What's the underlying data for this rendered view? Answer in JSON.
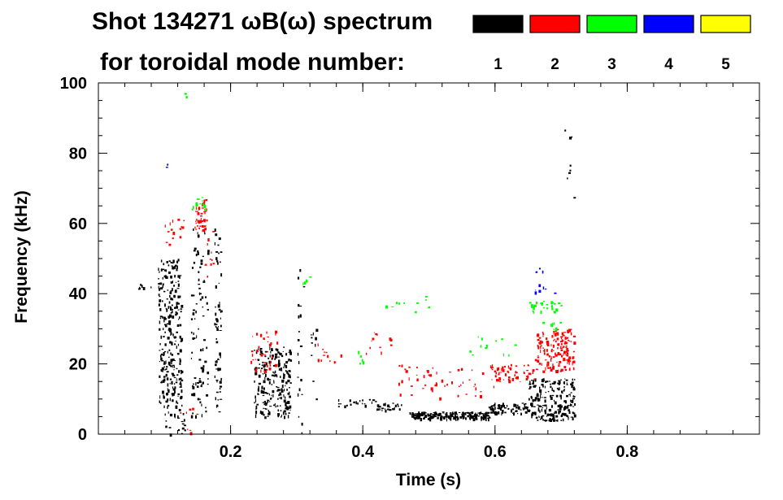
{
  "chart_data": {
    "type": "scatter",
    "title_line1": "Shot 134271 ωB(ω) spectrum",
    "title_line2": "for toroidal mode number:",
    "xlabel": "Time (s)",
    "ylabel": "Frequency (kHz)",
    "xlim": [
      0.0,
      1.0
    ],
    "ylim": [
      0,
      100
    ],
    "xticks": [
      0.2,
      0.4,
      0.6,
      0.8
    ],
    "xtick_labels": [
      "0.2",
      "0.4",
      "0.6",
      "0.8"
    ],
    "yticks": [
      0,
      20,
      40,
      60,
      80,
      100
    ],
    "ytick_labels": [
      "0",
      "20",
      "40",
      "60",
      "80",
      "100"
    ],
    "legend": [
      {
        "label": "1",
        "color": "#000000"
      },
      {
        "label": "2",
        "color": "#ff0000"
      },
      {
        "label": "3",
        "color": "#00ff00"
      },
      {
        "label": "4",
        "color": "#0000ff"
      },
      {
        "label": "5",
        "color": "#ffff00"
      }
    ],
    "series": [
      {
        "name": "n=1",
        "color": "#000000",
        "clusters": [
          {
            "x": [
              0.09,
              0.125
            ],
            "y": [
              8,
              50
            ],
            "count": 260
          },
          {
            "x": [
              0.1,
              0.13
            ],
            "y": [
              0,
              10
            ],
            "count": 25
          },
          {
            "x": [
              0.14,
              0.165
            ],
            "y": [
              5,
              60
            ],
            "count": 90
          },
          {
            "x": [
              0.175,
              0.185
            ],
            "y": [
              5,
              60
            ],
            "count": 60
          },
          {
            "x": [
              0.235,
              0.29
            ],
            "y": [
              5,
              25
            ],
            "count": 230
          },
          {
            "x": [
              0.3,
              0.31
            ],
            "y": [
              0,
              50
            ],
            "count": 20
          },
          {
            "x": [
              0.32,
              0.33
            ],
            "y": [
              10,
              30
            ],
            "count": 10
          },
          {
            "x": [
              0.36,
              0.42
            ],
            "y": [
              8,
              10
            ],
            "count": 20
          },
          {
            "x": [
              0.42,
              0.46
            ],
            "y": [
              7,
              9
            ],
            "count": 25
          },
          {
            "x": [
              0.47,
              0.59
            ],
            "y": [
              4.5,
              6.5
            ],
            "count": 200
          },
          {
            "x": [
              0.59,
              0.65
            ],
            "y": [
              6,
              9
            ],
            "count": 70
          },
          {
            "x": [
              0.65,
              0.72
            ],
            "y": [
              4,
              16
            ],
            "count": 200
          },
          {
            "x": [
              0.06,
              0.08
            ],
            "y": [
              41.5,
              43
            ],
            "count": 8
          },
          {
            "x": [
              0.7,
              0.72
            ],
            "y": [
              60,
              90
            ],
            "count": 8
          }
        ]
      },
      {
        "name": "n=2",
        "color": "#ff0000",
        "clusters": [
          {
            "x": [
              0.1,
              0.13
            ],
            "y": [
              54,
              62
            ],
            "count": 15
          },
          {
            "x": [
              0.145,
              0.165
            ],
            "y": [
              58,
              67
            ],
            "count": 45
          },
          {
            "x": [
              0.16,
              0.175
            ],
            "y": [
              45,
              60
            ],
            "count": 12
          },
          {
            "x": [
              0.23,
              0.27
            ],
            "y": [
              18,
              30
            ],
            "count": 35
          },
          {
            "x": [
              0.33,
              0.37
            ],
            "y": [
              20,
              26
            ],
            "count": 12
          },
          {
            "x": [
              0.4,
              0.45
            ],
            "y": [
              23,
              30
            ],
            "count": 12
          },
          {
            "x": [
              0.45,
              0.6
            ],
            "y": [
              10,
              20
            ],
            "count": 55
          },
          {
            "x": [
              0.59,
              0.66
            ],
            "y": [
              15,
              20
            ],
            "count": 55
          },
          {
            "x": [
              0.66,
              0.72
            ],
            "y": [
              18,
              30
            ],
            "count": 150
          },
          {
            "x": [
              0.12,
              0.15
            ],
            "y": [
              0,
              10
            ],
            "count": 8
          }
        ]
      },
      {
        "name": "n=3",
        "color": "#00ff00",
        "clusters": [
          {
            "x": [
              0.14,
              0.16
            ],
            "y": [
              64,
              68
            ],
            "count": 15
          },
          {
            "x": [
              0.3,
              0.32
            ],
            "y": [
              42,
              46
            ],
            "count": 5
          },
          {
            "x": [
              0.39,
              0.4
            ],
            "y": [
              20,
              24
            ],
            "count": 6
          },
          {
            "x": [
              0.42,
              0.5
            ],
            "y": [
              35,
              40
            ],
            "count": 10
          },
          {
            "x": [
              0.56,
              0.64
            ],
            "y": [
              22,
              28
            ],
            "count": 12
          },
          {
            "x": [
              0.65,
              0.7
            ],
            "y": [
              35,
              38
            ],
            "count": 30
          },
          {
            "x": [
              0.67,
              0.7
            ],
            "y": [
              30,
              32
            ],
            "count": 8
          },
          {
            "x": [
              0.13,
              0.14
            ],
            "y": [
              96,
              98
            ],
            "count": 2
          }
        ]
      },
      {
        "name": "n=4",
        "color": "#0000ff",
        "clusters": [
          {
            "x": [
              0.66,
              0.7
            ],
            "y": [
              40,
              49
            ],
            "count": 10
          },
          {
            "x": [
              0.1,
              0.11
            ],
            "y": [
              76,
              78
            ],
            "count": 2
          }
        ]
      }
    ]
  }
}
